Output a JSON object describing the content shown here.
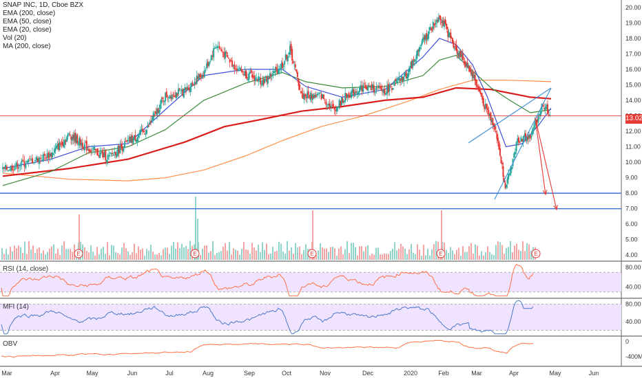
{
  "legend": [
    "SNAP INC, 1D, Cboe BZX",
    "EMA (200, close)",
    "EMA (50, close)",
    "EMA (20, close)",
    "Vol (20)",
    "MA (200, close)"
  ],
  "panes": {
    "rsi": "RSI (14, close)",
    "mfi": "MFI (14)",
    "obv": "OBV"
  },
  "price_badge": "13.02",
  "colors": {
    "up": "#26a69a",
    "down": "#e53935",
    "ema200": "#ff8f4a",
    "ema50": "#3a8a3a",
    "ema20": "#3f51d6",
    "ma200": "#d81b1b",
    "hline": "#3b6fd6",
    "wedge": "#3a8fd6",
    "arrow": "#e53935",
    "rsi_line": "#ff7043",
    "mfi_line": "#4a78c8",
    "obv_line": "#ff7043",
    "band": "#efe3ff"
  },
  "chart_data": {
    "type": "line",
    "title": "SNAP INC, 1D, Cboe BZX",
    "x_labels": [
      "Mar",
      "Apr",
      "May",
      "Jun",
      "Jul",
      "Aug",
      "Sep",
      "Oct",
      "Nov",
      "Dec",
      "2020",
      "Feb",
      "Mar",
      "Apr",
      "May",
      "Jun"
    ],
    "price_axis": {
      "ticks": [
        "20.00",
        "19.00",
        "18.00",
        "17.00",
        "16.00",
        "15.00",
        "14.00",
        "13.00",
        "12.00",
        "11.00",
        "10.00",
        "9.00",
        "8.00",
        "7.00",
        "6.00",
        "5.00",
        "4.00"
      ],
      "ylim": [
        3.7,
        20.3
      ]
    },
    "horizontal_levels": [
      13.0,
      8.0,
      7.0
    ],
    "series": [
      {
        "name": "Price (close)",
        "points": [
          [
            0,
            9.5
          ],
          [
            1.0,
            10.5
          ],
          [
            1.5,
            11.8
          ],
          [
            2.0,
            10.9
          ],
          [
            2.5,
            10.3
          ],
          [
            3.0,
            11.3
          ],
          [
            3.5,
            12.1
          ],
          [
            4.0,
            14.3
          ],
          [
            4.5,
            14.6
          ],
          [
            5.0,
            15.8
          ],
          [
            5.3,
            17.6
          ],
          [
            5.7,
            16.3
          ],
          [
            6.0,
            15.7
          ],
          [
            6.5,
            15.2
          ],
          [
            7.0,
            16.3
          ],
          [
            7.2,
            17.3
          ],
          [
            7.5,
            14.3
          ],
          [
            8.0,
            14.3
          ],
          [
            8.3,
            13.4
          ],
          [
            8.6,
            14.3
          ],
          [
            9.0,
            14.9
          ],
          [
            9.5,
            14.6
          ],
          [
            10.0,
            15.6
          ],
          [
            10.5,
            17.8
          ],
          [
            11.0,
            19.5
          ],
          [
            11.2,
            18.6
          ],
          [
            11.5,
            17.3
          ],
          [
            12.0,
            15.7
          ],
          [
            12.3,
            13.8
          ],
          [
            12.6,
            12.3
          ],
          [
            12.9,
            8.3
          ],
          [
            13.2,
            11.5
          ],
          [
            13.5,
            11.6
          ],
          [
            13.8,
            13.8
          ],
          [
            14.0,
            13.0
          ]
        ]
      },
      {
        "name": "EMA (20, close)",
        "points": [
          [
            0,
            9.6
          ],
          [
            1.0,
            10.2
          ],
          [
            2.0,
            11.0
          ],
          [
            3.0,
            11.2
          ],
          [
            4.0,
            13.4
          ],
          [
            5.0,
            15.6
          ],
          [
            6.0,
            16.0
          ],
          [
            7.0,
            16.0
          ],
          [
            7.6,
            14.9
          ],
          [
            8.5,
            14.2
          ],
          [
            9.5,
            14.7
          ],
          [
            10.5,
            16.8
          ],
          [
            11.0,
            18.0
          ],
          [
            11.5,
            17.6
          ],
          [
            12.0,
            16.3
          ],
          [
            12.4,
            14.2
          ],
          [
            12.9,
            11.0
          ],
          [
            13.3,
            11.2
          ],
          [
            13.7,
            12.4
          ],
          [
            14.0,
            13.5
          ]
        ]
      },
      {
        "name": "EMA (50, close)",
        "points": [
          [
            0,
            8.5
          ],
          [
            1.0,
            9.4
          ],
          [
            2.0,
            10.6
          ],
          [
            3.0,
            11.0
          ],
          [
            4.0,
            12.1
          ],
          [
            5.0,
            14.0
          ],
          [
            6.0,
            15.1
          ],
          [
            7.0,
            15.8
          ],
          [
            7.6,
            15.2
          ],
          [
            8.5,
            14.8
          ],
          [
            9.5,
            14.9
          ],
          [
            10.5,
            15.6
          ],
          [
            11.0,
            16.6
          ],
          [
            11.5,
            16.9
          ],
          [
            12.0,
            15.9
          ],
          [
            12.5,
            14.8
          ],
          [
            13.0,
            14.0
          ],
          [
            13.5,
            13.2
          ],
          [
            14.0,
            13.4
          ]
        ]
      },
      {
        "name": "MA (200, close)",
        "points": [
          [
            0,
            9.1
          ],
          [
            1.5,
            9.6
          ],
          [
            3.0,
            10.2
          ],
          [
            4.5,
            11.3
          ],
          [
            5.5,
            12.3
          ],
          [
            6.5,
            12.8
          ],
          [
            7.5,
            13.3
          ],
          [
            8.5,
            13.6
          ],
          [
            9.5,
            14.0
          ],
          [
            10.5,
            14.2
          ],
          [
            11.5,
            14.8
          ],
          [
            12.5,
            14.7
          ],
          [
            13.5,
            14.2
          ],
          [
            14.0,
            14.1
          ]
        ]
      },
      {
        "name": "EMA (200, close)",
        "points": [
          [
            0,
            9.3
          ],
          [
            1.5,
            8.9
          ],
          [
            3.0,
            8.8
          ],
          [
            4.0,
            9.0
          ],
          [
            5.0,
            9.5
          ],
          [
            6.0,
            10.4
          ],
          [
            7.0,
            11.4
          ],
          [
            8.0,
            12.3
          ],
          [
            9.0,
            13.0
          ],
          [
            10.0,
            13.9
          ],
          [
            11.0,
            14.7
          ],
          [
            12.0,
            15.3
          ],
          [
            13.0,
            15.3
          ],
          [
            14.0,
            15.2
          ]
        ]
      }
    ],
    "rsi": {
      "ylim": [
        20,
        90
      ],
      "ticks": [
        "80.00",
        "40.00"
      ],
      "band": [
        30,
        70
      ]
    },
    "mfi": {
      "ylim": [
        10,
        90
      ],
      "ticks": [
        "80.00",
        "40.00"
      ],
      "band": [
        20,
        80
      ]
    },
    "obv": {
      "ticks": [
        "0",
        "-400M"
      ]
    },
    "earnings_markers": [
      "E",
      "E",
      "E",
      "E",
      "E"
    ]
  }
}
